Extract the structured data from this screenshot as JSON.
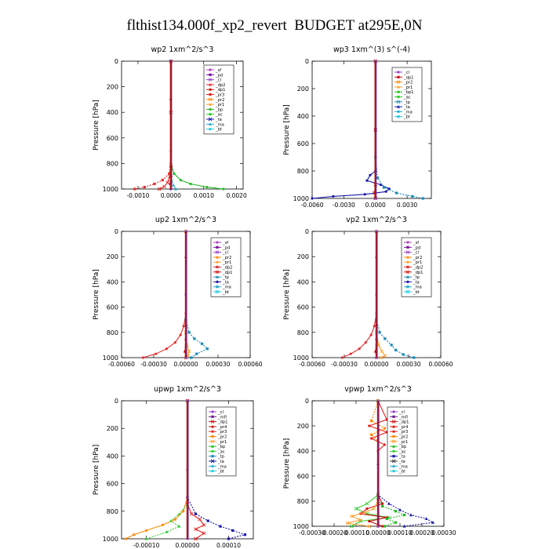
{
  "title": "flthist134.000f_xp2_revert  BUDGET at295E,0N",
  "legend_colors": {
    "_sf": "#b040c0",
    "_pd": "#7a0a9a",
    "_cl": "#9a40c8",
    "_mfl": "#6a1a8a",
    "_dp2": "#e03030",
    "_dp1": "#cc1111",
    "_pr1": "#ffa030",
    "_pr2": "#ff8a00",
    "_pr3": "#e62020",
    "_pr4": "#cc1111",
    "_bp": "#22bb22",
    "_bp1": "#22bb22",
    "_ac": "#33cc33",
    "_tp": "#1a8ab8",
    "_ta": "#1a1aa8",
    "_ma": "#22aacc",
    "_bt": "#22c8dd"
  },
  "chart_data": [
    {
      "id": "wp2",
      "type": "line",
      "title": "wp2   1xm^2/s^3",
      "ylabel": "Pressure [hPa]",
      "ylim": [
        1000,
        0
      ],
      "yticks": [
        "0",
        "200",
        "400",
        "600",
        "800",
        "1000"
      ],
      "xlim": [
        -0.0015,
        0.0022
      ],
      "xticks": [
        {
          "v": -0.001,
          "label": "-0.0010"
        },
        {
          "v": 0,
          "label": "0.0000"
        },
        {
          "v": 0.001,
          "label": "0.0010"
        },
        {
          "v": 0.002,
          "label": "0.0020"
        }
      ],
      "legend": [
        "_sf",
        "_pd",
        "_cl",
        "_dp2",
        "_dp1",
        "_pr3",
        "_pr2",
        "_pr1",
        "_bp",
        "_ac",
        "_ta",
        "_ma",
        "_bt"
      ],
      "series": [
        {
          "name": "_bp",
          "x": [
            0,
            0,
            0,
            2e-05,
            0.0001,
            0.0003,
            0.0006,
            0.0011,
            0.0016
          ],
          "y": [
            0,
            300,
            700,
            820,
            880,
            930,
            960,
            985,
            1000
          ]
        },
        {
          "name": "_dp2",
          "x": [
            0,
            0,
            0,
            -5e-05,
            -0.00025,
            -0.0005,
            -0.0008,
            -0.0011
          ],
          "y": [
            0,
            400,
            820,
            880,
            930,
            960,
            985,
            1000
          ]
        },
        {
          "name": "_pr3",
          "x": [
            0,
            0,
            0,
            -3e-05,
            -0.0001,
            -0.0002,
            -0.00035
          ],
          "y": [
            0,
            400,
            840,
            900,
            950,
            980,
            1000
          ]
        },
        {
          "name": "_ma",
          "x": [
            0,
            0,
            0,
            2e-05,
            8e-05,
            0.00015
          ],
          "y": [
            0,
            400,
            880,
            930,
            970,
            1000
          ]
        },
        {
          "name": "_pd",
          "x": [
            0,
            0,
            0,
            1e-05,
            -2e-05,
            0
          ],
          "y": [
            0,
            300,
            800,
            900,
            960,
            1000
          ]
        }
      ]
    },
    {
      "id": "wp3",
      "type": "line",
      "title": "wp3   1xm^(3) s^(-4)",
      "ylabel": "Pressure [hPa]",
      "ylim": [
        1000,
        0
      ],
      "yticks": [
        "0",
        "200",
        "400",
        "600",
        "800",
        "1000"
      ],
      "xlim": [
        -0.006,
        0.0053
      ],
      "xticks": [
        {
          "v": -0.006,
          "label": "-0.0060"
        },
        {
          "v": -0.003,
          "label": "-0.0030"
        },
        {
          "v": 0,
          "label": "0.0000"
        },
        {
          "v": 0.003,
          "label": "0.0030"
        }
      ],
      "legend": [
        "_cl",
        "_dp1",
        "_pr2",
        "_pr1",
        "_bp1",
        "_ac",
        "_tp",
        "_ta",
        "_ma",
        "_bt"
      ],
      "series": [
        {
          "name": "_ta",
          "x": [
            0,
            0,
            0,
            -0.0005,
            -0.0008,
            0.0005,
            0.0013,
            0.001,
            -0.001,
            -0.004,
            -0.006
          ],
          "y": [
            0,
            500,
            800,
            830,
            870,
            900,
            930,
            950,
            970,
            985,
            1000
          ]
        },
        {
          "name": "_tp",
          "x": [
            0,
            0,
            0.0002,
            0.0008,
            0.002,
            0.0035,
            0.0045
          ],
          "y": [
            0,
            700,
            850,
            920,
            960,
            985,
            1000
          ]
        },
        {
          "name": "_dp1",
          "x": [
            0,
            0,
            0,
            -0.0001,
            0
          ],
          "y": [
            0,
            500,
            900,
            960,
            1000
          ]
        },
        {
          "name": "_cl",
          "x": [
            0,
            0,
            0
          ],
          "y": [
            0,
            500,
            1000
          ]
        }
      ]
    },
    {
      "id": "up2",
      "type": "line",
      "title": "up2   1xm^2/s^3",
      "ylabel": "Pressure [hPa]",
      "ylim": [
        1000,
        0
      ],
      "yticks": [
        "0",
        "200",
        "400",
        "600",
        "800",
        "1000"
      ],
      "xlim": [
        -0.0006,
        0.0006
      ],
      "xticks": [
        {
          "v": -0.0006,
          "label": "-0.00060"
        },
        {
          "v": -0.0003,
          "label": "-0.00030"
        },
        {
          "v": 0,
          "label": "0.00000"
        },
        {
          "v": 0.0003,
          "label": "0.00030"
        },
        {
          "v": 0.0006,
          "label": "0.00060"
        }
      ],
      "legend": [
        "_sf",
        "_pd",
        "_cl",
        "_pr2",
        "_pr1",
        "_dp2",
        "_dp1",
        "_tp",
        "_ta",
        "_ma",
        "_bt"
      ],
      "series": [
        {
          "name": "_dp2",
          "x": [
            0,
            0,
            -2e-05,
            -5e-05,
            -0.0001,
            -0.00018,
            -0.00028,
            -0.0004
          ],
          "y": [
            0,
            650,
            750,
            820,
            880,
            930,
            970,
            1000
          ]
        },
        {
          "name": "_tp",
          "x": [
            0,
            0,
            3e-05,
            8e-05,
            0.00015,
            0.0002,
            0.0001,
            5e-05
          ],
          "y": [
            0,
            700,
            800,
            850,
            890,
            930,
            970,
            1000
          ]
        },
        {
          "name": "_pr1",
          "x": [
            0,
            0,
            1e-05,
            3e-05,
            2e-05,
            0
          ],
          "y": [
            0,
            800,
            900,
            950,
            985,
            1000
          ]
        },
        {
          "name": "_dp1",
          "x": [
            0,
            0,
            0,
            -1e-05,
            0
          ],
          "y": [
            0,
            200,
            850,
            950,
            1000
          ]
        },
        {
          "name": "_cl",
          "x": [
            0,
            0,
            0
          ],
          "y": [
            0,
            500,
            1000
          ]
        }
      ]
    },
    {
      "id": "vp2",
      "type": "line",
      "title": "vp2   1xm^2/s^3",
      "ylabel": "Pressure [hPa]",
      "ylim": [
        1000,
        0
      ],
      "yticks": [
        "0",
        "200",
        "400",
        "600",
        "800",
        "1000"
      ],
      "xlim": [
        -0.0006,
        0.0006
      ],
      "xticks": [
        {
          "v": -0.0006,
          "label": "-0.00060"
        },
        {
          "v": -0.0003,
          "label": "-0.00030"
        },
        {
          "v": 0,
          "label": "0.00000"
        },
        {
          "v": 0.0003,
          "label": "0.00030"
        },
        {
          "v": 0.0006,
          "label": "0.00060"
        }
      ],
      "legend": [
        "_sf",
        "_pd",
        "_cl",
        "_pr2",
        "_pr1",
        "_dp2",
        "_dp1",
        "_tp",
        "_ta",
        "_ma",
        "_bt"
      ],
      "series": [
        {
          "name": "_dp2",
          "x": [
            0,
            0,
            -2e-05,
            -5e-05,
            -0.0001,
            -0.00016,
            -0.00024,
            -0.00032
          ],
          "y": [
            0,
            650,
            750,
            820,
            880,
            930,
            970,
            1000
          ]
        },
        {
          "name": "_tp",
          "x": [
            0,
            0,
            3e-05,
            8e-05,
            0.00014,
            0.00018,
            0.00025,
            0.00035
          ],
          "y": [
            0,
            700,
            800,
            850,
            900,
            940,
            975,
            1000
          ]
        },
        {
          "name": "_pr1",
          "x": [
            0,
            0,
            2e-05,
            5e-05,
            8e-05,
            4e-05
          ],
          "y": [
            0,
            800,
            900,
            950,
            985,
            1000
          ]
        },
        {
          "name": "_dp1",
          "x": [
            0,
            0,
            0,
            -1e-05,
            0
          ],
          "y": [
            0,
            200,
            850,
            950,
            1000
          ]
        },
        {
          "name": "_cl",
          "x": [
            0,
            0,
            0
          ],
          "y": [
            0,
            500,
            1000
          ]
        }
      ]
    },
    {
      "id": "upwp",
      "type": "line",
      "title": "upwp   1xm^2/s^3",
      "ylabel": "Pressure [hPa]",
      "ylim": [
        1000,
        0
      ],
      "yticks": [
        "0",
        "200",
        "400",
        "600",
        "800",
        "1000"
      ],
      "xlim": [
        -0.00016,
        0.00016
      ],
      "xticks": [
        {
          "v": -0.0001,
          "label": "-0.00010"
        },
        {
          "v": 0,
          "label": "0.00000"
        },
        {
          "v": 0.0001,
          "label": "0.00010"
        }
      ],
      "legend": [
        "_cl",
        "_mfl",
        "_dp1",
        "_pr4",
        "_pr3",
        "_pr2",
        "_pr1",
        "_bp",
        "_ac",
        "_tp",
        "_ta",
        "_ma",
        "_bt"
      ],
      "series": [
        {
          "name": "_pr2",
          "x": [
            0,
            0,
            -1e-05,
            -3e-05,
            -6e-05,
            -0.0001,
            -0.00013,
            -0.00015
          ],
          "y": [
            0,
            700,
            800,
            860,
            900,
            940,
            970,
            1000
          ]
        },
        {
          "name": "_ta",
          "x": [
            0,
            0,
            2e-05,
            5e-05,
            8e-05,
            0.00011,
            0.00014,
            0.0001
          ],
          "y": [
            0,
            700,
            820,
            870,
            910,
            940,
            970,
            1000
          ]
        },
        {
          "name": "_pr3",
          "x": [
            0,
            0,
            1e-05,
            3e-05,
            4e-05,
            2e-05,
            4e-05,
            2e-05
          ],
          "y": [
            0,
            750,
            820,
            860,
            900,
            930,
            960,
            1000
          ]
        },
        {
          "name": "_ac",
          "x": [
            0,
            0,
            -2e-05,
            -4e-05,
            -2e-05,
            -5e-05,
            -0.0001
          ],
          "y": [
            0,
            750,
            820,
            870,
            910,
            950,
            1000
          ]
        },
        {
          "name": "_cl",
          "x": [
            0,
            0,
            0
          ],
          "y": [
            0,
            500,
            1000
          ]
        }
      ]
    },
    {
      "id": "vpwp",
      "type": "line",
      "title": "vpwp   1xm^2/s^3",
      "ylabel": "Pressure [hPa]",
      "ylim": [
        1000,
        0
      ],
      "yticks": [
        "0",
        "200",
        "400",
        "600",
        "800",
        "1000"
      ],
      "xlim": [
        -0.0003,
        0.0003
      ],
      "xticks": [
        {
          "v": -0.0003,
          "label": "-0.00030"
        },
        {
          "v": -0.0002,
          "label": "-0.00020"
        },
        {
          "v": -0.0001,
          "label": "-0.00010"
        },
        {
          "v": 0,
          "label": "0.00000"
        },
        {
          "v": 0.0001,
          "label": "0.00010"
        },
        {
          "v": 0.0002,
          "label": "0.00020"
        },
        {
          "v": 0.0003,
          "label": "0.00030"
        }
      ],
      "legend": [
        "_cl",
        "_mfl",
        "_dp1",
        "_pr4",
        "_pr3",
        "_pr2",
        "_pr1",
        "_bp",
        "_ac",
        "_ta",
        "_te",
        "_ma",
        "_bt"
      ],
      "series": [
        {
          "name": "_pr3",
          "x": [
            0,
            4e-05,
            -4e-05,
            4e-05,
            -3e-05,
            3e-05,
            0,
            0
          ],
          "y": [
            0,
            150,
            200,
            250,
            300,
            350,
            400,
            1000
          ]
        },
        {
          "name": "_pr2",
          "x": [
            0,
            -3e-05,
            3e-05,
            -3e-05,
            0,
            0
          ],
          "y": [
            0,
            160,
            220,
            270,
            320,
            1000
          ]
        },
        {
          "name": "_ac",
          "x": [
            0,
            0,
            -5e-05,
            -0.0001,
            -5e-05,
            5e-05,
            -8e-05,
            -0.00012
          ],
          "y": [
            0,
            750,
            820,
            860,
            900,
            930,
            960,
            1000
          ]
        },
        {
          "name": "_ta",
          "x": [
            0,
            0,
            5e-05,
            0.0001,
            0.00015,
            0.00022,
            0.00025,
            0.00012
          ],
          "y": [
            0,
            750,
            820,
            870,
            910,
            940,
            970,
            1000
          ]
        },
        {
          "name": "_pr4",
          "x": [
            0,
            0,
            2e-05,
            -5e-05,
            -8e-05,
            4e-05,
            -4e-05,
            2e-05
          ],
          "y": [
            0,
            750,
            820,
            860,
            900,
            930,
            960,
            1000
          ]
        },
        {
          "name": "_bp",
          "x": [
            0,
            0,
            2e-05,
            8e-05,
            0.00012,
            4e-05,
            8e-05,
            3e-05
          ],
          "y": [
            0,
            780,
            840,
            880,
            910,
            940,
            970,
            1000
          ]
        },
        {
          "name": "_pr1",
          "x": [
            0,
            0,
            -2e-05,
            -6e-05,
            -0.00012,
            -8e-05,
            -0.00014,
            -4e-05
          ],
          "y": [
            0,
            800,
            860,
            890,
            920,
            950,
            975,
            1000
          ]
        },
        {
          "name": "_cl",
          "x": [
            0,
            0,
            0
          ],
          "y": [
            0,
            500,
            1000
          ]
        }
      ]
    }
  ]
}
